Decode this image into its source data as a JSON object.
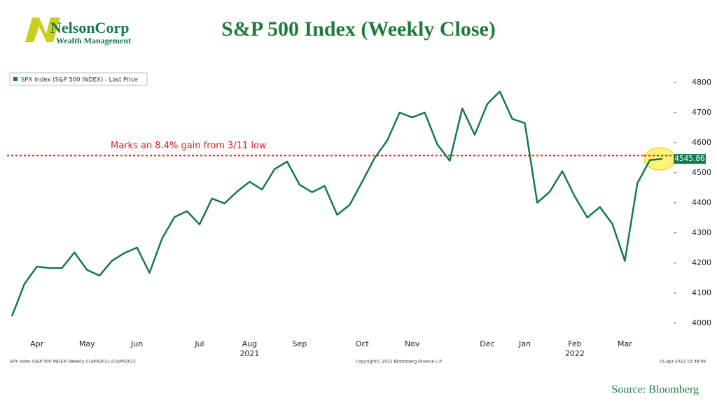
{
  "header": {
    "logo_name": "NelsonCorp",
    "logo_sub": "Wealth Management"
  },
  "chart_data": {
    "type": "line",
    "title": "S&P 500 Index (Weekly Close)",
    "categories": [
      null,
      null,
      "Apr",
      null,
      null,
      null,
      "May",
      null,
      null,
      null,
      "Jun",
      null,
      null,
      null,
      null,
      "Jul",
      null,
      null,
      null,
      "Aug",
      null,
      null,
      null,
      "Sep",
      null,
      null,
      null,
      null,
      "Oct",
      null,
      null,
      null,
      "Nov",
      null,
      null,
      null,
      null,
      null,
      "Dec",
      null,
      null,
      "Jan",
      null,
      null,
      null,
      "Feb",
      null,
      null,
      null,
      "Mar",
      null,
      null,
      null
    ],
    "years": [
      {
        "label": "2021",
        "category": 19
      },
      {
        "label": "2022",
        "category": 45
      }
    ],
    "series": [
      {
        "name": "SPX Index (S&P 500 INDEX) - Last Price",
        "color": "#137a4c",
        "values": [
          4023,
          4130,
          4188,
          4183,
          4183,
          4235,
          4177,
          4158,
          4207,
          4233,
          4251,
          4167,
          4281,
          4353,
          4372,
          4328,
          4414,
          4398,
          4437,
          4470,
          4444,
          4512,
          4537,
          4460,
          4435,
          4456,
          4360,
          4393,
          4470,
          4549,
          4607,
          4700,
          4684,
          4700,
          4595,
          4540,
          4714,
          4626,
          4728,
          4770,
          4679,
          4665,
          4400,
          4437,
          4505,
          4421,
          4351,
          4386,
          4330,
          4207,
          4465,
          4542,
          4545.86
        ]
      }
    ],
    "ylim": [
      3953,
      4830
    ],
    "yticks": [
      4000,
      4100,
      4200,
      4300,
      4400,
      4500,
      4600,
      4700,
      4800
    ],
    "reference_line": {
      "value": 4557,
      "color": "#e0201e",
      "label": "Marks an 8.4% gain from 3/11 low"
    },
    "legend": "top-left",
    "footer": {
      "left": "SPX Index (S&P 500 INDEX) Weekly 01APR2021-01APR2022",
      "center": "Copyright© 2022 Bloomberg Finance L.P.",
      "right": "01-Apr-2022 15:38:09"
    },
    "source": "Source: Bloomberg"
  }
}
